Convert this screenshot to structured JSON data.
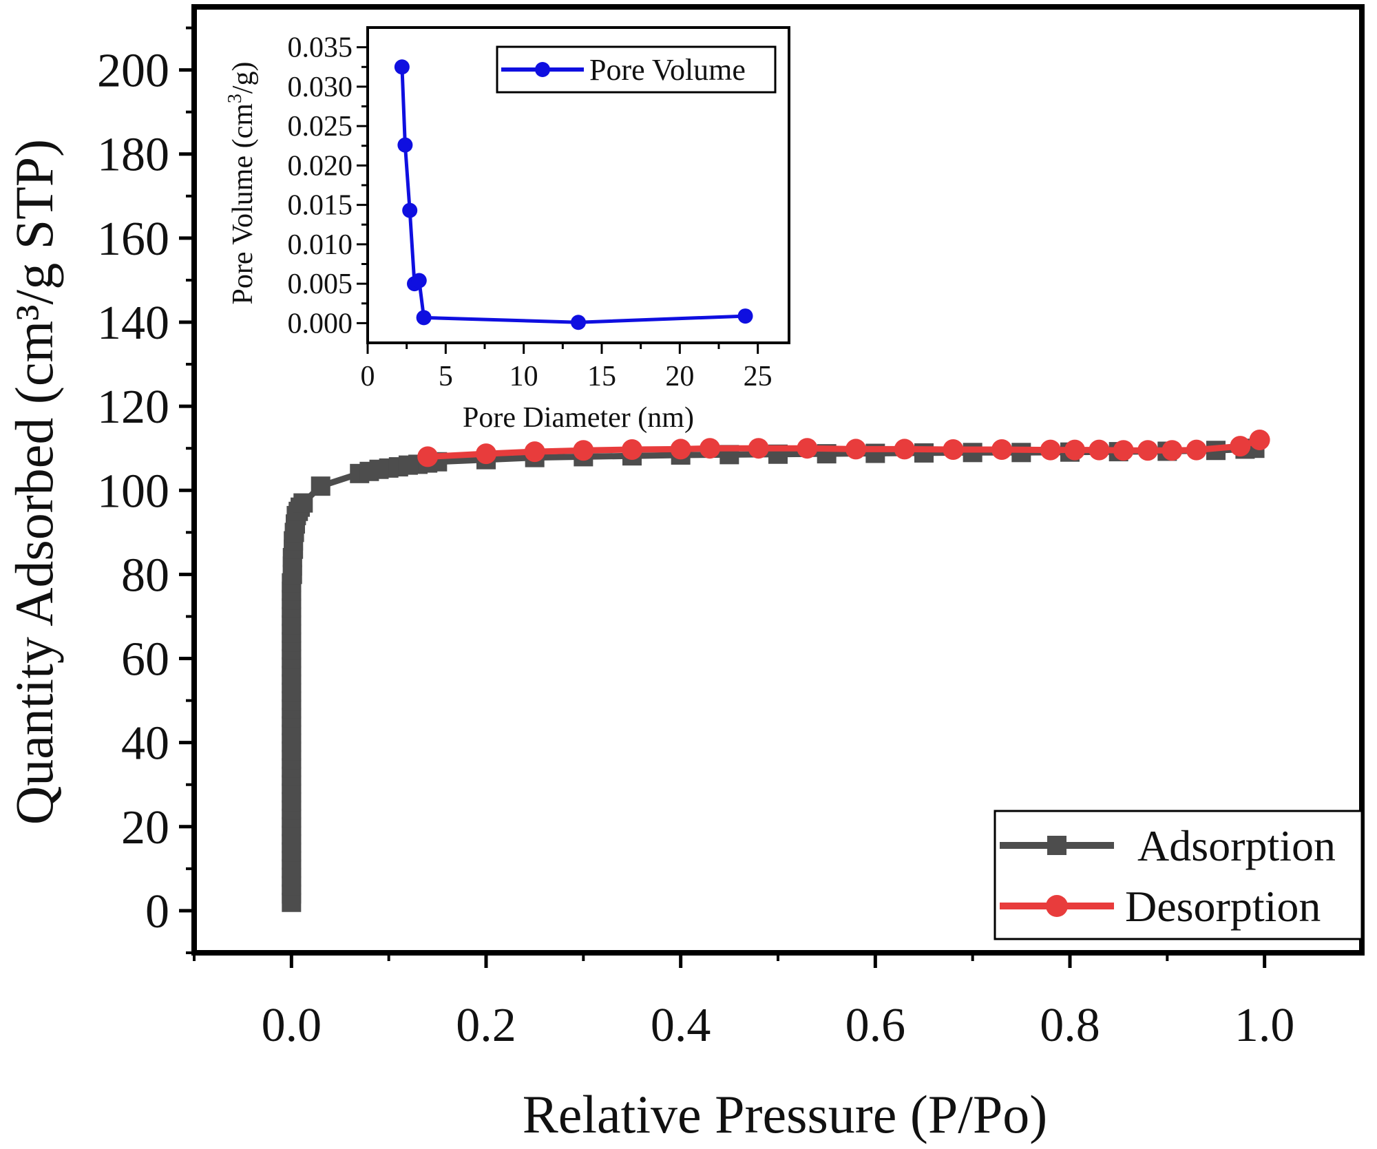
{
  "chart_data": [
    {
      "id": "main",
      "type": "line",
      "title": "",
      "xlabel": "Relative Pressure (P/Po)",
      "ylabel": "Quantity Adsorbed (cm³/g STP)",
      "xlim": [
        -0.1,
        1.1
      ],
      "ylim": [
        -10,
        215
      ],
      "xticks": [
        "0.0",
        "0.2",
        "0.4",
        "0.6",
        "0.8",
        "1.0"
      ],
      "xtick_values": [
        0.0,
        0.2,
        0.4,
        0.6,
        0.8,
        1.0
      ],
      "yticks": [
        "0",
        "20",
        "40",
        "60",
        "80",
        "100",
        "120",
        "140",
        "160",
        "180",
        "200"
      ],
      "ytick_values": [
        0,
        20,
        40,
        60,
        80,
        100,
        120,
        140,
        160,
        180,
        200
      ],
      "legend_position": "bottom-right",
      "series": [
        {
          "name": "Adsorption",
          "color": "#4d4d4d",
          "marker": "square",
          "x": [
            0.0,
            0.0,
            0.0,
            0.0,
            0.0,
            0.0,
            0.0,
            0.0,
            0.0,
            0.0,
            0.0,
            0.0,
            0.0,
            0.0,
            0.0,
            0.0,
            0.0,
            0.0,
            0.0,
            0.0,
            0.0,
            0.0,
            0.0,
            0.0,
            0.0,
            0.0,
            0.0,
            0.0,
            0.0,
            0.0,
            0.0,
            0.0,
            0.0,
            0.0,
            0.0,
            0.0,
            0.0,
            0.0,
            0.0,
            0.001,
            0.001,
            0.001,
            0.002,
            0.002,
            0.003,
            0.004,
            0.005,
            0.007,
            0.009,
            0.012,
            0.03,
            0.07,
            0.08,
            0.09,
            0.1,
            0.11,
            0.12,
            0.13,
            0.14,
            0.15,
            0.2,
            0.25,
            0.3,
            0.35,
            0.4,
            0.45,
            0.5,
            0.55,
            0.6,
            0.65,
            0.7,
            0.75,
            0.8,
            0.85,
            0.9,
            0.95,
            0.98,
            0.99
          ],
          "y": [
            2,
            4,
            6,
            8,
            10,
            12,
            14,
            16,
            18,
            20,
            22,
            24,
            26,
            28,
            30,
            32,
            34,
            36,
            38,
            40,
            42,
            44,
            46,
            48,
            50,
            52,
            54,
            56,
            58,
            60,
            62,
            64,
            66,
            68,
            70,
            72,
            74,
            76,
            78,
            80,
            82,
            84,
            86,
            88,
            90,
            92,
            94,
            95,
            96,
            97,
            101,
            104,
            104.5,
            105,
            105.3,
            105.6,
            106,
            106.2,
            106.5,
            106.8,
            107.3,
            107.8,
            108,
            108.2,
            108.4,
            108.5,
            108.6,
            108.7,
            108.8,
            108.9,
            109,
            109,
            109.1,
            109.2,
            109.3,
            109.5,
            109.8,
            110
          ]
        },
        {
          "name": "Desorption",
          "color": "#e83c3c",
          "marker": "circle",
          "x": [
            0.995,
            0.975,
            0.93,
            0.905,
            0.88,
            0.855,
            0.83,
            0.805,
            0.78,
            0.73,
            0.68,
            0.63,
            0.58,
            0.53,
            0.48,
            0.43,
            0.4,
            0.35,
            0.3,
            0.25,
            0.2,
            0.14
          ],
          "y": [
            112,
            110.5,
            109.6,
            109.5,
            109.5,
            109.5,
            109.6,
            109.6,
            109.6,
            109.7,
            109.7,
            109.8,
            109.8,
            110,
            110,
            110,
            109.8,
            109.7,
            109.5,
            109.2,
            108.7,
            108
          ]
        }
      ]
    },
    {
      "id": "inset",
      "type": "line",
      "title": "",
      "xlabel": "Pore Diameter (nm)",
      "ylabel_parts": [
        "Pore Volume (cm",
        "3",
        "/g)"
      ],
      "xlim": [
        0,
        27
      ],
      "ylim": [
        -0.0025,
        0.0375
      ],
      "xticks": [
        "0",
        "5",
        "10",
        "15",
        "20",
        "25"
      ],
      "xtick_values": [
        0,
        5,
        10,
        15,
        20,
        25
      ],
      "yticks": [
        "0.000",
        "0.005",
        "0.010",
        "0.015",
        "0.020",
        "0.025",
        "0.030",
        "0.035"
      ],
      "ytick_values": [
        0,
        0.005,
        0.01,
        0.015,
        0.02,
        0.025,
        0.03,
        0.035
      ],
      "legend_position": "top-right",
      "series": [
        {
          "name": "Pore Volume",
          "color": "#0f0fe0",
          "marker": "circle",
          "x": [
            2.2,
            2.4,
            2.7,
            3.0,
            3.3,
            3.6,
            13.5,
            24.2
          ],
          "y": [
            0.0325,
            0.0226,
            0.0143,
            0.005,
            0.0054,
            0.0007,
            0.0001,
            0.0009
          ]
        }
      ]
    }
  ]
}
